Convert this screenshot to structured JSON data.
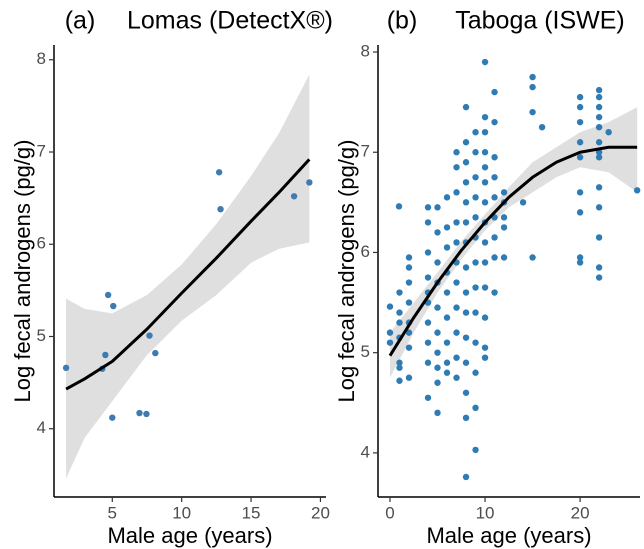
{
  "chart_data": [
    {
      "type": "scatter",
      "panel_label": "(a)",
      "title": "Lomas (DetectX®)",
      "x_label": "Male age (years)",
      "y_label": "Log fecal androgens (pg/g)",
      "xlim": [
        0.8,
        20.4
      ],
      "ylim": [
        3.26,
        8.16
      ],
      "xticks": [
        5,
        10,
        15,
        20
      ],
      "yticks": [
        4,
        5,
        6,
        7,
        8
      ],
      "points": {
        "color": "#3d7bb0",
        "x": [
          1.67,
          4.28,
          4.5,
          4.7,
          5.07,
          5.0,
          6.96,
          7.46,
          7.68,
          8.1,
          12.7,
          12.8,
          18.1,
          19.2
        ],
        "y": [
          4.66,
          4.65,
          4.8,
          5.45,
          5.33,
          4.12,
          4.17,
          4.16,
          5.01,
          4.82,
          6.78,
          6.38,
          6.52,
          6.67
        ]
      },
      "fit": {
        "color": "#000000",
        "band_color": "#d9d9d9",
        "x": [
          1.67,
          3,
          5,
          7.5,
          10,
          12.5,
          15,
          17,
          19.2
        ],
        "y": [
          4.43,
          4.54,
          4.73,
          5.08,
          5.47,
          5.85,
          6.25,
          6.56,
          6.92
        ],
        "lower": [
          3.46,
          3.9,
          4.3,
          4.8,
          5.17,
          5.45,
          5.8,
          5.95,
          6.02
        ],
        "upper": [
          5.41,
          5.3,
          5.25,
          5.45,
          5.78,
          6.22,
          6.74,
          7.2,
          7.84
        ]
      }
    },
    {
      "type": "scatter",
      "panel_label": "(b)",
      "title": "Taboga (ISWE)",
      "x_label": "Male age (years)",
      "y_label": "Log fecal androgens (pg/g)",
      "xlim": [
        -1.26,
        26.3
      ],
      "ylim": [
        3.56,
        8.07
      ],
      "xticks": [
        0,
        10,
        20
      ],
      "yticks": [
        4,
        5,
        6,
        7,
        8
      ],
      "points": {
        "color": "#2f7cb5",
        "x": [
          0,
          0,
          0,
          0.95,
          1,
          1,
          1,
          1,
          1,
          1,
          1,
          2,
          2,
          2,
          2,
          2,
          2,
          2,
          2,
          4,
          4,
          4,
          4,
          4,
          4,
          4,
          4,
          4,
          4,
          5,
          5,
          5,
          5,
          5,
          5,
          5,
          5,
          5,
          5,
          6,
          6,
          6,
          6,
          6,
          6,
          6,
          6,
          6,
          7,
          7,
          7,
          7,
          7,
          7,
          7,
          7,
          7,
          7,
          7,
          8,
          8,
          8,
          8,
          8,
          8,
          8,
          8,
          8,
          8,
          8,
          8,
          8,
          8,
          8,
          9,
          9,
          9,
          9,
          9,
          9,
          9,
          9,
          9,
          9,
          9,
          9,
          9,
          10,
          10,
          10,
          10,
          10,
          10,
          10,
          10,
          10,
          10,
          10,
          10,
          10,
          10,
          11,
          11,
          11,
          11,
          11,
          11,
          11,
          11,
          11,
          12,
          12,
          12,
          12,
          12,
          14,
          15,
          15,
          15,
          15,
          16,
          20,
          20,
          20,
          20,
          20,
          20,
          20,
          20,
          20,
          22,
          22,
          22,
          22,
          22,
          22,
          22,
          22,
          22,
          22,
          22,
          22,
          22,
          23,
          26
        ],
        "y": [
          5.46,
          5.2,
          5.1,
          6.46,
          5.3,
          5.15,
          4.9,
          4.85,
          5.4,
          5.6,
          4.72,
          5.95,
          5.85,
          5.7,
          5.5,
          5.3,
          5.05,
          4.75,
          5.2,
          6.45,
          6.3,
          6.0,
          5.75,
          5.5,
          5.3,
          5.1,
          4.9,
          4.55,
          5.6,
          6.45,
          6.2,
          5.9,
          5.7,
          5.45,
          5.2,
          5.0,
          4.85,
          4.7,
          4.4,
          6.55,
          6.25,
          6.05,
          5.8,
          5.6,
          5.35,
          5.1,
          4.9,
          4.8,
          7.0,
          6.85,
          6.6,
          6.3,
          6.1,
          5.9,
          5.7,
          5.45,
          5.2,
          4.95,
          4.75,
          7.45,
          7.1,
          6.9,
          6.7,
          6.5,
          6.3,
          6.1,
          5.85,
          5.6,
          5.4,
          5.15,
          4.9,
          4.6,
          4.35,
          3.76,
          7.2,
          7.0,
          6.75,
          6.55,
          6.35,
          6.15,
          5.9,
          5.65,
          5.4,
          5.1,
          4.8,
          4.45,
          4.03,
          7.9,
          7.35,
          7.2,
          7.0,
          6.85,
          6.7,
          6.5,
          6.3,
          6.1,
          5.9,
          5.65,
          5.35,
          5.05,
          4.95,
          7.6,
          7.3,
          6.95,
          6.75,
          6.55,
          6.35,
          6.15,
          5.95,
          5.6,
          6.6,
          6.5,
          6.35,
          6.25,
          5.95,
          6.5,
          7.75,
          7.65,
          7.4,
          5.95,
          7.25,
          7.55,
          7.45,
          7.3,
          7.1,
          6.95,
          6.6,
          6.4,
          5.95,
          5.9,
          7.62,
          7.55,
          7.45,
          7.35,
          7.25,
          7.1,
          7.0,
          6.95,
          6.65,
          6.45,
          6.15,
          5.85,
          5.75,
          7.2,
          6.62
        ]
      },
      "fit": {
        "color": "#000000",
        "band_color": "#d9d9d9",
        "x": [
          0,
          2.5,
          5,
          7.5,
          10,
          12.5,
          15,
          17.5,
          20,
          23,
          26
        ],
        "y": [
          4.97,
          5.35,
          5.7,
          6.02,
          6.3,
          6.55,
          6.75,
          6.9,
          7.0,
          7.05,
          7.05
        ],
        "lower": [
          4.75,
          5.2,
          5.6,
          5.93,
          6.22,
          6.45,
          6.6,
          6.75,
          6.85,
          6.8,
          6.6
        ],
        "upper": [
          5.2,
          5.5,
          5.8,
          6.11,
          6.38,
          6.65,
          6.9,
          7.05,
          7.2,
          7.3,
          7.45
        ]
      }
    }
  ]
}
